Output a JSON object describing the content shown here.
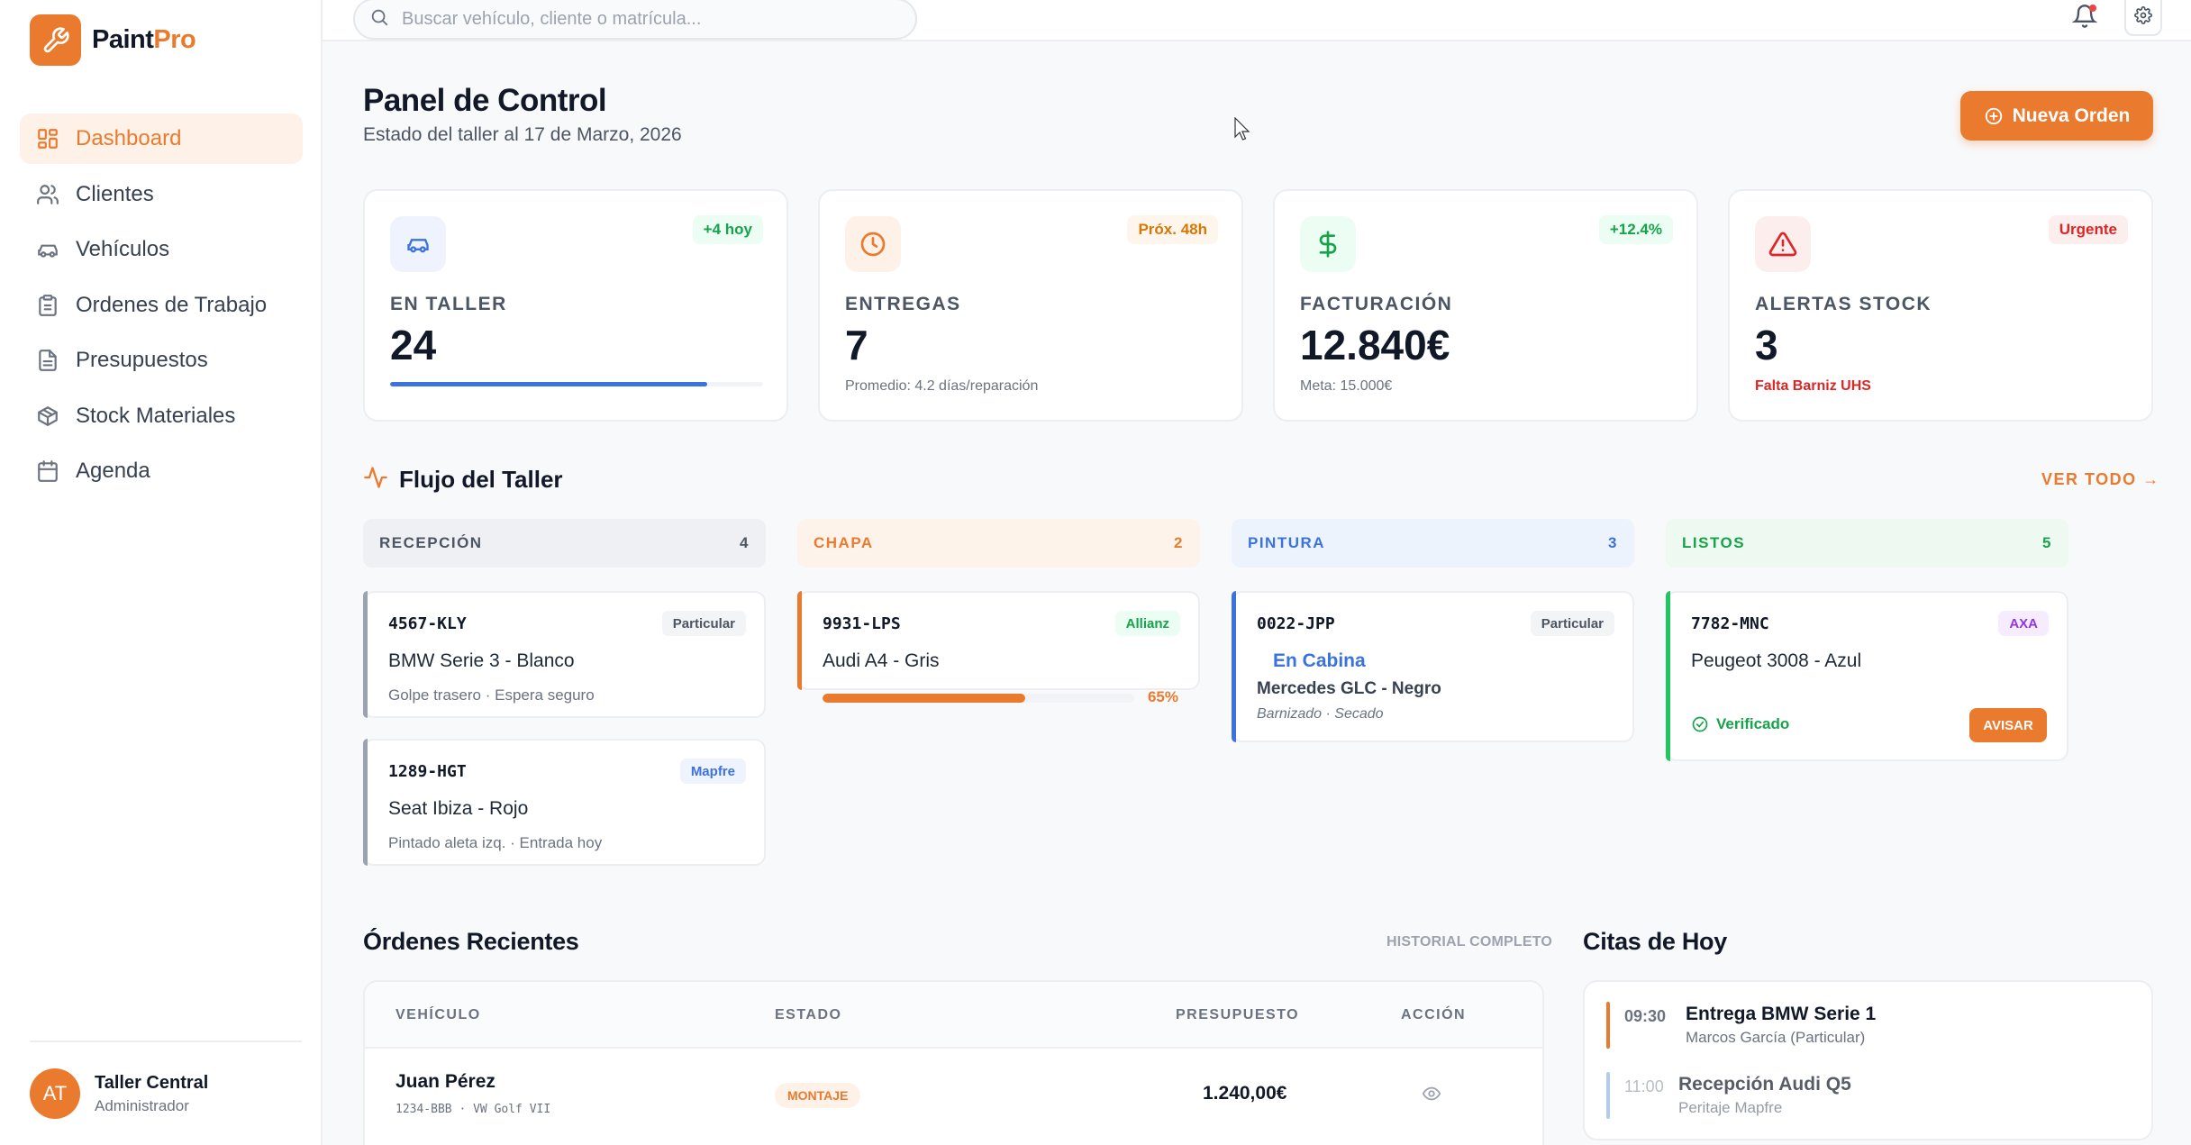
{
  "brand": {
    "name_a": "Paint",
    "name_b": "Pro"
  },
  "search": {
    "placeholder": "Buscar vehículo, cliente o matrícula..."
  },
  "sidebar": {
    "items": [
      {
        "label": "Dashboard",
        "icon": "grid-icon"
      },
      {
        "label": "Clientes",
        "icon": "users-icon"
      },
      {
        "label": "Vehículos",
        "icon": "car-icon"
      },
      {
        "label": "Ordenes de Trabajo",
        "icon": "clipboard-icon"
      },
      {
        "label": "Presupuestos",
        "icon": "file-icon"
      },
      {
        "label": "Stock Materiales",
        "icon": "box-icon"
      },
      {
        "label": "Agenda",
        "icon": "calendar-icon"
      }
    ],
    "user": {
      "initials": "AT",
      "name": "Taller Central",
      "role": "Administrador"
    }
  },
  "header": {
    "title": "Panel de Control",
    "subtitle": "Estado del taller al 17 de Marzo, 2026",
    "new_order_label": "Nueva Orden"
  },
  "stats": [
    {
      "label": "EN TALLER",
      "value": "24",
      "badge": "+4 hoy",
      "progress_pct": 85
    },
    {
      "label": "ENTREGAS",
      "value": "7",
      "badge": "Próx. 48h",
      "foot": "Promedio: 4.2 días/reparación"
    },
    {
      "label": "FACTURACIÓN",
      "value": "12.840€",
      "badge": "+12.4%",
      "foot": "Meta: 15.000€"
    },
    {
      "label": "ALERTAS STOCK",
      "value": "3",
      "badge": "Urgente",
      "foot": "Falta Barniz UHS"
    }
  ],
  "flujo": {
    "title": "Flujo del Taller",
    "ver_todo": "VER TODO →",
    "columns": [
      {
        "name": "RECEPCIÓN",
        "count": "4"
      },
      {
        "name": "CHAPA",
        "count": "2"
      },
      {
        "name": "PINTURA",
        "count": "3"
      },
      {
        "name": "LISTOS",
        "count": "5"
      }
    ],
    "cards": {
      "recepcion": [
        {
          "plate": "4567-KLY",
          "insurer": "Particular",
          "model": "BMW Serie 3 - Blanco",
          "desc": "Golpe trasero · Espera seguro"
        },
        {
          "plate": "1289-HGT",
          "insurer": "Mapfre",
          "model": "Seat Ibiza - Rojo",
          "desc": "Pintado aleta izq. · Entrada hoy"
        }
      ],
      "chapa": [
        {
          "plate": "9931-LPS",
          "insurer": "Allianz",
          "model": "Audi A4 - Gris",
          "progress_label": "65%",
          "progress_pct": 65
        }
      ],
      "pintura": [
        {
          "plate": "0022-JPP",
          "insurer": "Particular",
          "status": "En Cabina",
          "model": "Mercedes GLC - Negro",
          "desc": "Barnizado · Secado"
        }
      ],
      "listos": [
        {
          "plate": "7782-MNC",
          "insurer": "AXA",
          "model": "Peugeot 3008 - Azul",
          "verified": "Verificado",
          "action": "AVISAR"
        }
      ]
    }
  },
  "orders": {
    "title": "Órdenes Recientes",
    "historial": "HISTORIAL COMPLETO",
    "columns": [
      "VEHÍCULO",
      "ESTADO",
      "PRESUPUESTO",
      "ACCIÓN"
    ],
    "rows": [
      {
        "client": "Juan Pérez",
        "vehicle": "1234-BBB · VW Golf VII",
        "status": "MONTAJE",
        "budget": "1.240,00€"
      }
    ]
  },
  "citas": {
    "title": "Citas de Hoy",
    "items": [
      {
        "time": "09:30",
        "title": "Entrega BMW Serie 1",
        "sub": "Marcos García (Particular)"
      },
      {
        "time": "11:00",
        "title": "Recepción Audi Q5",
        "sub": "Peritaje Mapfre"
      }
    ]
  },
  "colors": {
    "accent": "#ea7a2e",
    "blue": "#3b72e0",
    "green": "#16a34a",
    "red": "#dc2626"
  }
}
